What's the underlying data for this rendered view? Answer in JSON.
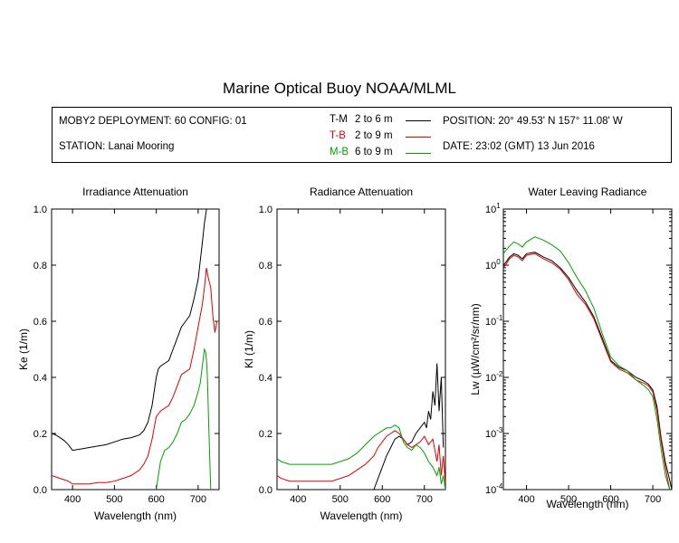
{
  "title": "Marine Optical Buoy NOAA/MLML",
  "info": {
    "deployment": "MOBY2 DEPLOYMENT: 60 CONFIG: 01",
    "station": "STATION: Lanai Mooring",
    "position": "POSITION: 20° 49.53' N   157° 11.08' W",
    "date": "DATE: 23:02 (GMT) 13 Jun 2016"
  },
  "legend": [
    {
      "code": "T-M",
      "range": "2 to 6  m",
      "color": "#000000"
    },
    {
      "code": "T-B",
      "range": "2 to 9  m",
      "color": "#e00000"
    },
    {
      "code": "M-B",
      "range": "6 to 9  m",
      "color": "#00a000"
    }
  ],
  "chart_data": [
    {
      "type": "line",
      "title": "Irradiance Attenuation",
      "xlabel": "Wavelength (nm)",
      "ylabel": "Ke  (1/m)",
      "xlim": [
        350,
        750
      ],
      "ylim": [
        0,
        1.0
      ],
      "xticks": [
        400,
        500,
        600,
        700
      ],
      "yticks": [
        "0.0",
        "0.2",
        "0.4",
        "0.6",
        "0.8",
        "1.0"
      ],
      "yscale": "linear",
      "series": [
        {
          "name": "T-M",
          "color": "#000000",
          "x": [
            350,
            360,
            370,
            380,
            390,
            400,
            420,
            440,
            460,
            480,
            500,
            520,
            540,
            560,
            570,
            580,
            590,
            600,
            605,
            610,
            620,
            630,
            640,
            650,
            660,
            670,
            680,
            690,
            700,
            710,
            715,
            720
          ],
          "y": [
            0.2,
            0.195,
            0.185,
            0.175,
            0.16,
            0.14,
            0.145,
            0.15,
            0.155,
            0.16,
            0.17,
            0.18,
            0.185,
            0.195,
            0.21,
            0.24,
            0.3,
            0.4,
            0.43,
            0.44,
            0.45,
            0.46,
            0.5,
            0.54,
            0.58,
            0.6,
            0.62,
            0.68,
            0.75,
            0.88,
            0.95,
            1.0
          ]
        },
        {
          "name": "T-B",
          "color": "#e00000",
          "x": [
            350,
            360,
            370,
            380,
            390,
            400,
            420,
            440,
            460,
            480,
            500,
            520,
            540,
            560,
            570,
            580,
            590,
            600,
            610,
            620,
            630,
            640,
            650,
            660,
            670,
            680,
            690,
            700,
            710,
            715,
            720,
            725,
            730,
            735,
            740,
            745,
            750
          ],
          "y": [
            0.05,
            0.045,
            0.04,
            0.035,
            0.03,
            0.02,
            0.02,
            0.02,
            0.025,
            0.025,
            0.03,
            0.04,
            0.05,
            0.07,
            0.09,
            0.12,
            0.18,
            0.26,
            0.28,
            0.29,
            0.3,
            0.33,
            0.37,
            0.41,
            0.42,
            0.43,
            0.5,
            0.58,
            0.66,
            0.72,
            0.79,
            0.75,
            0.72,
            0.62,
            0.56,
            0.6,
            0.6
          ]
        },
        {
          "name": "M-B",
          "color": "#00a000",
          "x": [
            600,
            605,
            610,
            620,
            630,
            640,
            650,
            660,
            670,
            680,
            690,
            700,
            705,
            710,
            715,
            718,
            720,
            722,
            725,
            728,
            730
          ],
          "y": [
            0.0,
            0.05,
            0.1,
            0.14,
            0.15,
            0.17,
            0.2,
            0.24,
            0.25,
            0.27,
            0.3,
            0.35,
            0.38,
            0.44,
            0.5,
            0.49,
            0.46,
            0.4,
            0.25,
            0.1,
            0.0
          ]
        }
      ]
    },
    {
      "type": "line",
      "title": "Radiance Attenuation",
      "xlabel": "Wavelength (nm)",
      "ylabel": "Kl  (1/m)",
      "xlim": [
        350,
        750
      ],
      "ylim": [
        0,
        1.0
      ],
      "xticks": [
        400,
        500,
        600,
        700
      ],
      "yticks": [
        "0.0",
        "0.2",
        "0.4",
        "0.6",
        "0.8",
        "1.0"
      ],
      "yscale": "linear",
      "series": [
        {
          "name": "T-M",
          "color": "#000000",
          "x": [
            580,
            590,
            600,
            610,
            620,
            630,
            640,
            650,
            660,
            670,
            680,
            690,
            700,
            705,
            710,
            715,
            720,
            725,
            730,
            735,
            740,
            745
          ],
          "y": [
            0.0,
            0.04,
            0.08,
            0.12,
            0.15,
            0.18,
            0.19,
            0.18,
            0.16,
            0.17,
            0.2,
            0.22,
            0.24,
            0.22,
            0.28,
            0.25,
            0.35,
            0.3,
            0.45,
            0.28,
            0.4,
            0.15
          ]
        },
        {
          "name": "T-B",
          "color": "#e00000",
          "x": [
            350,
            360,
            380,
            400,
            420,
            440,
            460,
            480,
            500,
            520,
            540,
            560,
            580,
            590,
            600,
            610,
            620,
            630,
            640,
            650,
            660,
            670,
            680,
            690,
            700,
            710,
            720,
            730,
            735,
            740,
            745,
            750
          ],
          "y": [
            0.05,
            0.04,
            0.03,
            0.03,
            0.03,
            0.03,
            0.03,
            0.03,
            0.04,
            0.05,
            0.07,
            0.09,
            0.12,
            0.15,
            0.17,
            0.19,
            0.2,
            0.21,
            0.2,
            0.18,
            0.16,
            0.15,
            0.16,
            0.17,
            0.19,
            0.16,
            0.18,
            0.1,
            0.16,
            0.05,
            0.12,
            0.02
          ]
        },
        {
          "name": "M-B",
          "color": "#00a000",
          "x": [
            350,
            360,
            380,
            400,
            420,
            440,
            460,
            480,
            500,
            520,
            540,
            560,
            580,
            590,
            600,
            610,
            620,
            630,
            640,
            650,
            660,
            670,
            680,
            690,
            700,
            710,
            720,
            730,
            735,
            740,
            745,
            750
          ],
          "y": [
            0.11,
            0.1,
            0.09,
            0.09,
            0.09,
            0.09,
            0.09,
            0.09,
            0.1,
            0.11,
            0.13,
            0.16,
            0.19,
            0.2,
            0.21,
            0.22,
            0.22,
            0.23,
            0.22,
            0.17,
            0.15,
            0.14,
            0.16,
            0.15,
            0.13,
            0.1,
            0.08,
            0.05,
            0.08,
            0.02,
            0.05,
            0.0
          ]
        }
      ]
    },
    {
      "type": "line",
      "title": "Water Leaving Radiance",
      "xlabel": "Wavelength (nm)",
      "ylabel": "Lw  (µW/cm²/sr/nm)",
      "xlim": [
        345,
        745
      ],
      "ylim": [
        0.0001,
        10
      ],
      "xticks": [
        400,
        500,
        600,
        700
      ],
      "yscale": "log",
      "ytick_exponents": [
        -4,
        -3,
        -2,
        -1,
        0,
        1
      ],
      "series": [
        {
          "name": "T-M",
          "color": "#000000",
          "x": [
            345,
            350,
            360,
            370,
            380,
            390,
            400,
            420,
            440,
            460,
            480,
            500,
            520,
            540,
            560,
            580,
            600,
            620,
            640,
            660,
            680,
            690,
            700,
            710,
            720,
            730,
            740,
            745
          ],
          "y": [
            1.0,
            1.1,
            1.4,
            1.6,
            1.5,
            1.3,
            1.6,
            1.7,
            1.4,
            1.2,
            0.9,
            0.6,
            0.35,
            0.22,
            0.12,
            0.05,
            0.02,
            0.015,
            0.013,
            0.01,
            0.0085,
            0.0075,
            0.006,
            0.003,
            0.0008,
            0.0003,
            0.00015,
            0.0001
          ]
        },
        {
          "name": "T-B",
          "color": "#e00000",
          "x": [
            345,
            350,
            360,
            370,
            380,
            390,
            400,
            420,
            440,
            460,
            480,
            500,
            520,
            540,
            560,
            580,
            600,
            620,
            640,
            660,
            680,
            690,
            700,
            710,
            720,
            730,
            740
          ],
          "y": [
            0.9,
            1.0,
            1.3,
            1.5,
            1.4,
            1.2,
            1.5,
            1.6,
            1.3,
            1.1,
            0.85,
            0.55,
            0.3,
            0.2,
            0.11,
            0.045,
            0.019,
            0.014,
            0.012,
            0.009,
            0.0078,
            0.007,
            0.0055,
            0.0025,
            0.0007,
            0.00025,
            0.0001
          ]
        },
        {
          "name": "M-B",
          "color": "#00a000",
          "x": [
            345,
            350,
            360,
            370,
            380,
            390,
            400,
            420,
            440,
            460,
            480,
            500,
            520,
            540,
            560,
            580,
            600,
            620,
            640,
            660,
            680,
            690,
            700,
            710,
            720,
            730,
            740
          ],
          "y": [
            1.6,
            1.8,
            2.2,
            2.6,
            2.4,
            2.1,
            2.6,
            3.2,
            2.8,
            2.3,
            1.8,
            1.1,
            0.6,
            0.35,
            0.17,
            0.06,
            0.023,
            0.016,
            0.013,
            0.009,
            0.007,
            0.006,
            0.0045,
            0.0018,
            0.0005,
            0.00018,
            0.0001
          ]
        }
      ]
    }
  ]
}
